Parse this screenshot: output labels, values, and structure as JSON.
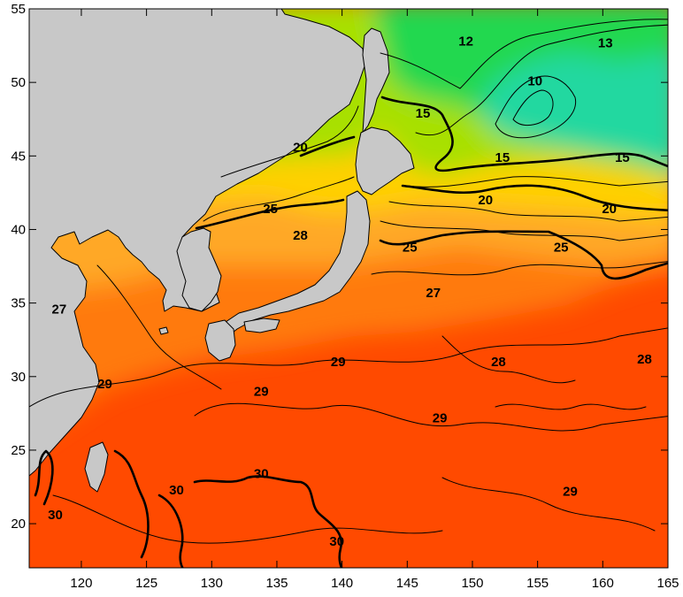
{
  "map": {
    "x_ticks": [
      "120",
      "125",
      "130",
      "135",
      "140",
      "145",
      "150",
      "155",
      "160",
      "165"
    ],
    "y_ticks": [
      "55",
      "50",
      "45",
      "40",
      "35",
      "30",
      "25",
      "20"
    ],
    "contour_labels": [
      "12",
      "13",
      "10",
      "15",
      "15",
      "15",
      "20",
      "20",
      "20",
      "25",
      "25",
      "25",
      "28",
      "27",
      "27",
      "28",
      "29",
      "29",
      "28",
      "29",
      "29",
      "29",
      "30",
      "30",
      "30",
      "30"
    ],
    "land_color": "#c8c8c8",
    "sea_colors": [
      "#ff4a00",
      "#ff7a10",
      "#ffa828",
      "#ffd000",
      "#a8e000",
      "#20d850",
      "#20d8a0"
    ]
  },
  "chart_data": {
    "type": "heatmap",
    "title": "",
    "xlabel": "",
    "ylabel": "",
    "xlim": [
      116,
      165
    ],
    "ylim": [
      17,
      55
    ],
    "contour_levels": [
      10,
      12,
      13,
      15,
      20,
      25,
      27,
      28,
      29,
      30
    ],
    "contour_label_points": [
      {
        "value": 12,
        "lon": 149.5,
        "lat": 52.8
      },
      {
        "value": 13,
        "lon": 160.2,
        "lat": 52.7
      },
      {
        "value": 10,
        "lon": 154.8,
        "lat": 50.1
      },
      {
        "value": 15,
        "lon": 146.2,
        "lat": 47.9
      },
      {
        "value": 15,
        "lon": 152.3,
        "lat": 44.9
      },
      {
        "value": 15,
        "lon": 161.5,
        "lat": 44.9
      },
      {
        "value": 20,
        "lon": 136.8,
        "lat": 45.6
      },
      {
        "value": 20,
        "lon": 151.0,
        "lat": 42.0
      },
      {
        "value": 20,
        "lon": 160.5,
        "lat": 41.4
      },
      {
        "value": 25,
        "lon": 134.5,
        "lat": 41.4
      },
      {
        "value": 25,
        "lon": 145.2,
        "lat": 38.8
      },
      {
        "value": 25,
        "lon": 156.8,
        "lat": 38.8
      },
      {
        "value": 28,
        "lon": 136.8,
        "lat": 39.6
      },
      {
        "value": 27,
        "lon": 118.3,
        "lat": 34.6
      },
      {
        "value": 27,
        "lon": 147.0,
        "lat": 35.7
      },
      {
        "value": 28,
        "lon": 163.2,
        "lat": 31.2
      },
      {
        "value": 29,
        "lon": 121.8,
        "lat": 29.5
      },
      {
        "value": 29,
        "lon": 139.7,
        "lat": 31.0
      },
      {
        "value": 28,
        "lon": 152.0,
        "lat": 31.0
      },
      {
        "value": 29,
        "lon": 133.8,
        "lat": 29.0
      },
      {
        "value": 29,
        "lon": 147.5,
        "lat": 27.2
      },
      {
        "value": 29,
        "lon": 157.5,
        "lat": 22.2
      },
      {
        "value": 30,
        "lon": 118.0,
        "lat": 20.6
      },
      {
        "value": 30,
        "lon": 127.3,
        "lat": 22.3
      },
      {
        "value": 30,
        "lon": 133.8,
        "lat": 23.4
      },
      {
        "value": 30,
        "lon": 139.6,
        "lat": 18.8
      }
    ]
  }
}
